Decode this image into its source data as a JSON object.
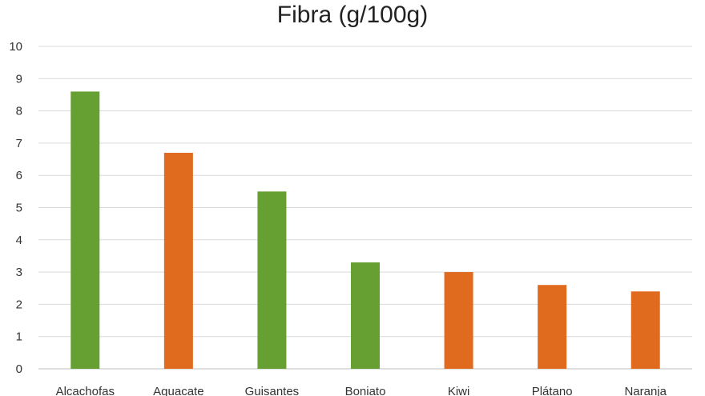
{
  "chart_data": {
    "type": "bar",
    "title": "Fibra (g/100g)",
    "xlabel": "",
    "ylabel": "",
    "categories": [
      "Alcachofas",
      "Aguacate",
      "Guisantes",
      "Boniato",
      "Kiwi",
      "Plátano",
      "Naranja"
    ],
    "values": [
      8.6,
      6.7,
      5.5,
      3.3,
      3.0,
      2.6,
      2.4
    ],
    "bar_colors": [
      "#66a032",
      "#e06a1e",
      "#66a032",
      "#66a032",
      "#e06a1e",
      "#e06a1e",
      "#e06a1e"
    ],
    "ylim": [
      0,
      10
    ],
    "yticks": [
      0,
      1,
      2,
      3,
      4,
      5,
      6,
      7,
      8,
      9,
      10
    ],
    "grid": true,
    "legend": "none"
  }
}
